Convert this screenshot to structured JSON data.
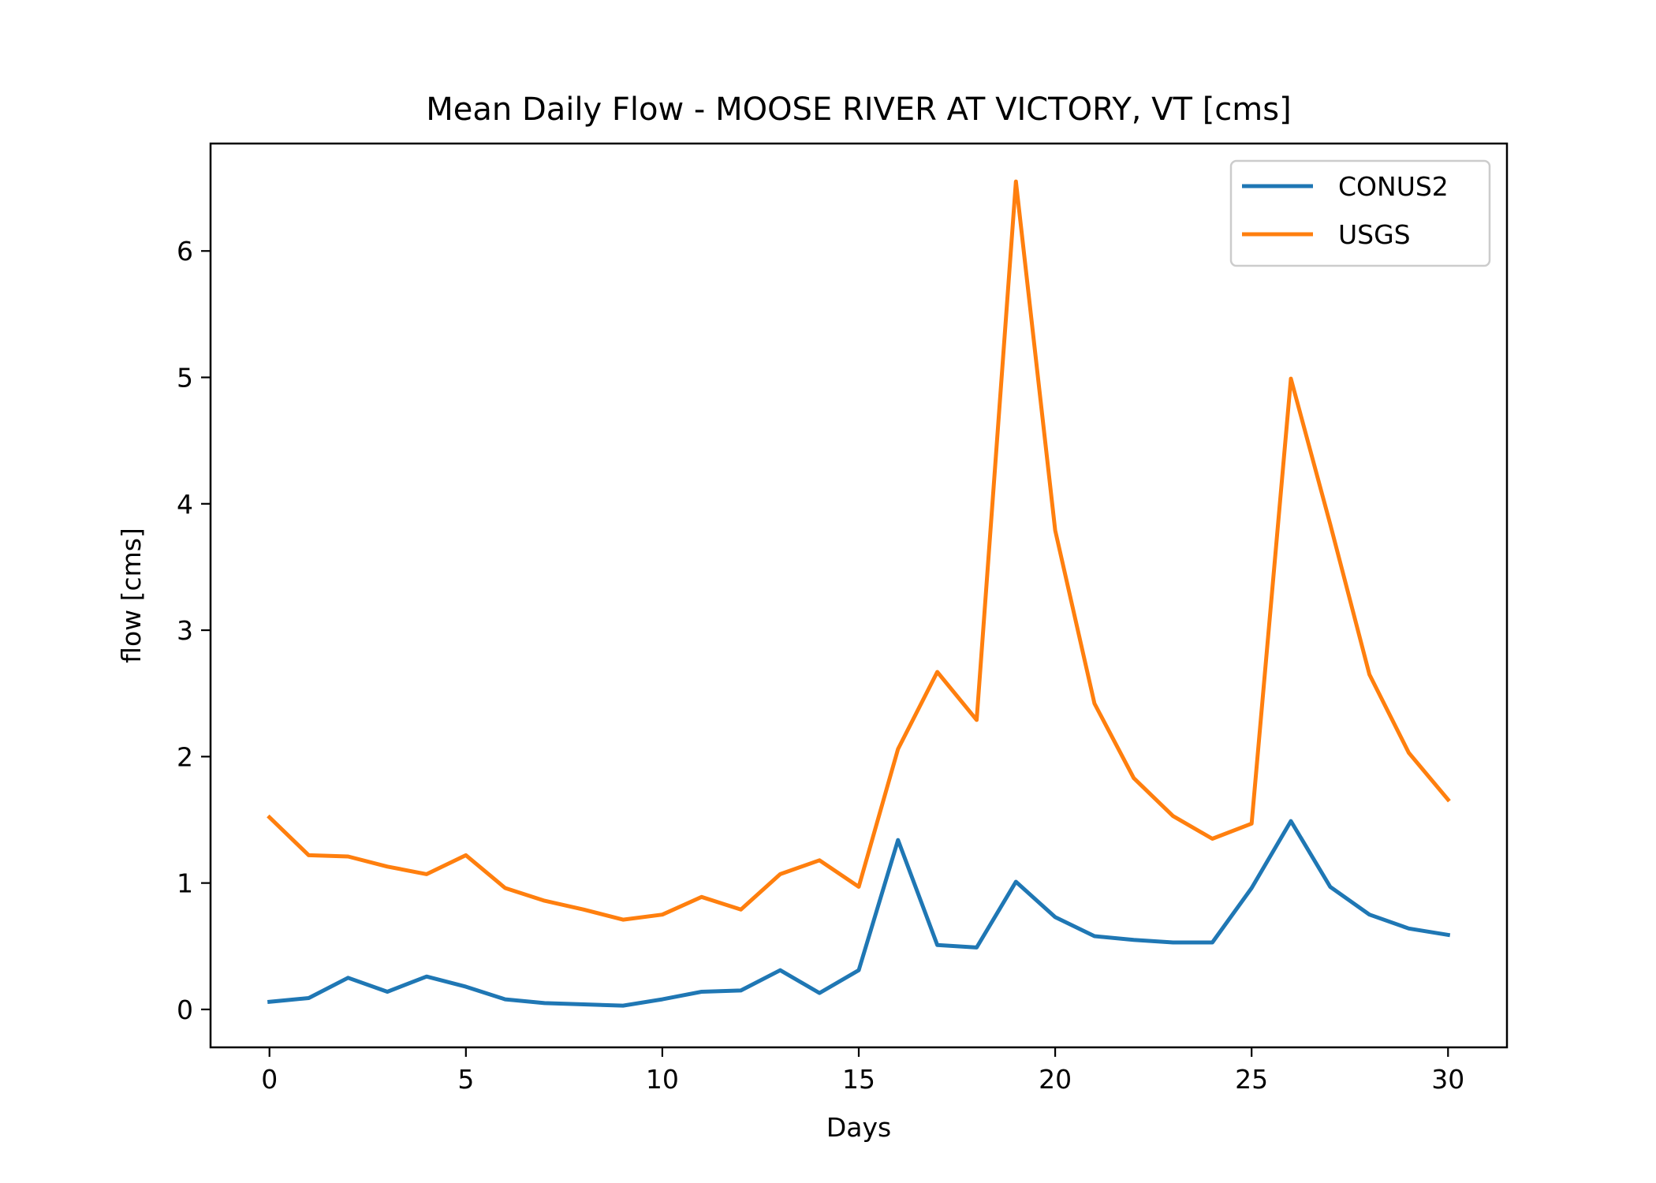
{
  "chart_data": {
    "type": "line",
    "title": "Mean Daily Flow - MOOSE RIVER AT VICTORY, VT [cms]",
    "xlabel": "Days",
    "ylabel": "flow [cms]",
    "xlim": [
      -1.5,
      31.5
    ],
    "ylim": [
      -0.3,
      6.85
    ],
    "xticks": [
      0,
      5,
      10,
      15,
      20,
      25,
      30
    ],
    "yticks": [
      0,
      1,
      2,
      3,
      4,
      5,
      6
    ],
    "grid": false,
    "legend_position": "top-right",
    "x": [
      0,
      1,
      2,
      3,
      4,
      5,
      6,
      7,
      8,
      9,
      10,
      11,
      12,
      13,
      14,
      15,
      16,
      17,
      18,
      19,
      20,
      21,
      22,
      23,
      24,
      25,
      26,
      27,
      28,
      29,
      30
    ],
    "series": [
      {
        "name": "CONUS2",
        "color": "#1f77b4",
        "values": [
          0.06,
          0.09,
          0.25,
          0.14,
          0.26,
          0.18,
          0.08,
          0.05,
          0.04,
          0.03,
          0.08,
          0.14,
          0.15,
          0.31,
          0.13,
          0.31,
          1.34,
          0.51,
          0.49,
          1.01,
          0.73,
          0.58,
          0.55,
          0.53,
          0.53,
          0.96,
          1.49,
          0.97,
          0.75,
          0.64,
          0.59
        ]
      },
      {
        "name": "USGS",
        "color": "#ff7f0e",
        "values": [
          1.52,
          1.22,
          1.21,
          1.13,
          1.07,
          1.22,
          0.96,
          0.86,
          0.79,
          0.71,
          0.75,
          0.89,
          0.79,
          1.07,
          1.18,
          0.97,
          2.06,
          2.67,
          2.29,
          6.55,
          3.79,
          2.42,
          1.83,
          1.53,
          1.35,
          1.47,
          4.99,
          3.84,
          2.65,
          2.03,
          1.66
        ]
      }
    ]
  }
}
